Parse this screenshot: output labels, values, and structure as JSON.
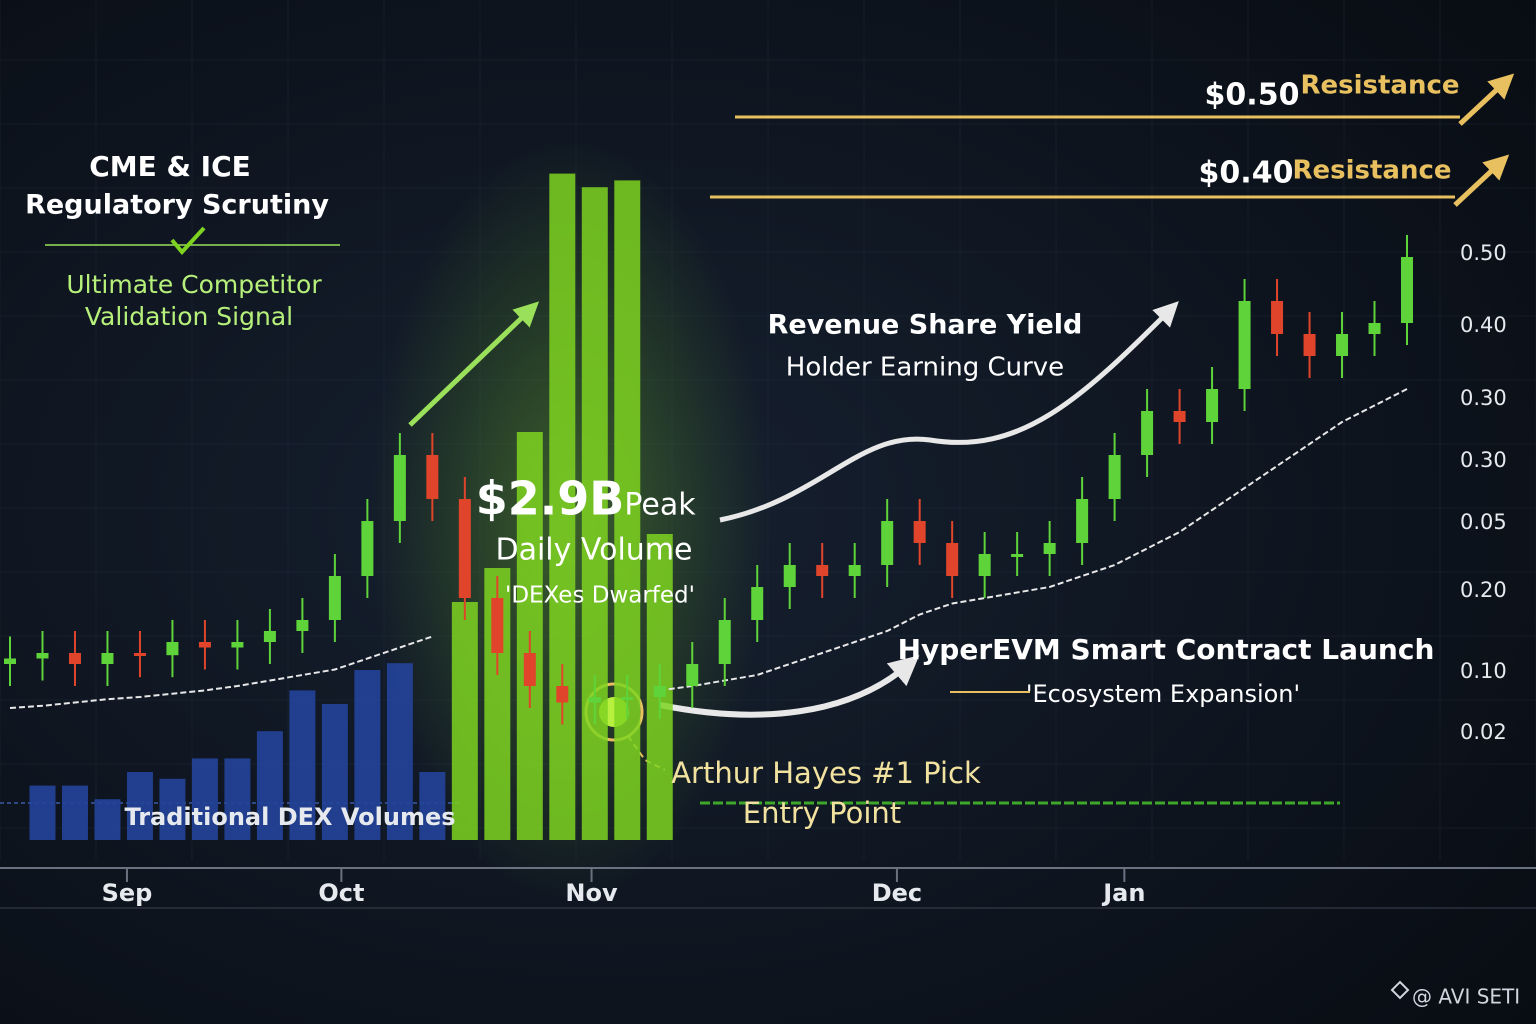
{
  "chart_data": {
    "type": "candlestick",
    "xlim": [
      -0.5,
      43.8
    ],
    "ylim": [
      0,
      0.6
    ],
    "xticks": [
      {
        "value": 3.6,
        "label": "Sep"
      },
      {
        "value": 10.2,
        "label": "Oct"
      },
      {
        "value": 17.9,
        "label": "Nov"
      },
      {
        "value": 27.3,
        "label": "Dec"
      },
      {
        "value": 34.3,
        "label": "Jan"
      }
    ],
    "price_labels": [
      "0.50",
      "0.40",
      "0.30",
      "0.30",
      "0.05",
      "0.20",
      "0.10",
      "0.02"
    ],
    "up_color": "#5fd43a",
    "down_color": "#e0452b",
    "open": [
      0.16,
      0.165,
      0.17,
      0.16,
      0.17,
      0.168,
      0.18,
      0.175,
      0.18,
      0.19,
      0.2,
      0.24,
      0.29,
      0.35,
      0.31,
      0.22,
      0.17,
      0.14,
      0.125,
      0.13,
      0.13,
      0.14,
      0.16,
      0.2,
      0.23,
      0.25,
      0.24,
      0.25,
      0.29,
      0.27,
      0.24,
      0.26,
      0.26,
      0.27,
      0.31,
      0.35,
      0.39,
      0.38,
      0.41,
      0.49,
      0.46,
      0.44,
      0.46,
      0.47
    ],
    "high": [
      0.185,
      0.19,
      0.19,
      0.19,
      0.19,
      0.2,
      0.2,
      0.2,
      0.21,
      0.22,
      0.26,
      0.31,
      0.37,
      0.37,
      0.33,
      0.24,
      0.19,
      0.16,
      0.15,
      0.15,
      0.16,
      0.18,
      0.22,
      0.25,
      0.27,
      0.27,
      0.27,
      0.31,
      0.31,
      0.29,
      0.28,
      0.28,
      0.29,
      0.33,
      0.37,
      0.41,
      0.41,
      0.43,
      0.51,
      0.51,
      0.48,
      0.48,
      0.49,
      0.55
    ],
    "low": [
      0.14,
      0.145,
      0.14,
      0.14,
      0.148,
      0.148,
      0.155,
      0.155,
      0.16,
      0.17,
      0.18,
      0.22,
      0.27,
      0.29,
      0.2,
      0.15,
      0.12,
      0.105,
      0.105,
      0.11,
      0.11,
      0.12,
      0.14,
      0.18,
      0.21,
      0.22,
      0.22,
      0.23,
      0.25,
      0.22,
      0.22,
      0.24,
      0.24,
      0.25,
      0.29,
      0.33,
      0.36,
      0.36,
      0.39,
      0.44,
      0.42,
      0.42,
      0.44,
      0.45
    ],
    "close": [
      0.165,
      0.17,
      0.16,
      0.17,
      0.168,
      0.18,
      0.175,
      0.18,
      0.19,
      0.2,
      0.24,
      0.29,
      0.35,
      0.31,
      0.22,
      0.17,
      0.14,
      0.125,
      0.13,
      0.13,
      0.14,
      0.16,
      0.2,
      0.23,
      0.25,
      0.24,
      0.25,
      0.29,
      0.27,
      0.24,
      0.26,
      0.26,
      0.27,
      0.31,
      0.35,
      0.39,
      0.38,
      0.41,
      0.49,
      0.46,
      0.44,
      0.46,
      0.47,
      0.53
    ],
    "moving_average": {
      "color": "#e8e8e8",
      "values": [
        0.12,
        0.122,
        0.125,
        0.128,
        0.13,
        0.133,
        0.136,
        0.14,
        0.145,
        0.15,
        0.155,
        0.165,
        0.175,
        0.185,
        null,
        null,
        null,
        null,
        null,
        null,
        0.136,
        0.14,
        0.145,
        0.15,
        0.16,
        0.17,
        0.18,
        0.19,
        0.205,
        0.215,
        0.22,
        0.225,
        0.23,
        0.24,
        0.25,
        0.265,
        0.28,
        0.3,
        0.32,
        0.34,
        0.36,
        0.38,
        0.395,
        0.41
      ]
    },
    "volume_ylim": [
      0,
      100
    ],
    "volume_series": [
      {
        "name": "Traditional DEX Volumes",
        "color": "#23449a",
        "values": [
          null,
          8,
          8,
          6,
          10,
          9,
          12,
          12,
          16,
          22,
          20,
          25,
          26,
          10,
          null,
          null,
          null,
          null,
          null,
          null,
          null,
          null,
          null,
          null,
          null,
          null,
          null,
          null,
          null,
          null,
          null,
          null,
          null,
          null,
          null,
          null,
          null,
          null,
          null,
          null,
          null,
          null,
          null,
          null
        ]
      },
      {
        "color": "#7ed321",
        "values": [
          null,
          null,
          null,
          null,
          null,
          null,
          null,
          null,
          null,
          null,
          null,
          null,
          null,
          null,
          35,
          40,
          60,
          98,
          96,
          97,
          45,
          null,
          null,
          null,
          null,
          null,
          null,
          null,
          null,
          null,
          null,
          null,
          null,
          null,
          null,
          null,
          null,
          null,
          null,
          null,
          null,
          null,
          null,
          null
        ]
      }
    ],
    "annotations": [
      "CME & ICE",
      "Regulatory Scrutiny",
      "Ultimate Competitor",
      "Validation Signal",
      "$2.9B",
      "Peak",
      "Daily Volume",
      "'DEXes Dwarfed'",
      "Revenue Share Yield",
      "Holder Earning Curve",
      "HyperEVM Smart Contract Launch",
      "'Ecosystem Expansion'",
      "Arthur Hayes #1 Pick",
      "Entry Point",
      "$0.50",
      "Resistance",
      "$0.40",
      "Resistance"
    ],
    "watermark": "@ AVI SETI"
  }
}
